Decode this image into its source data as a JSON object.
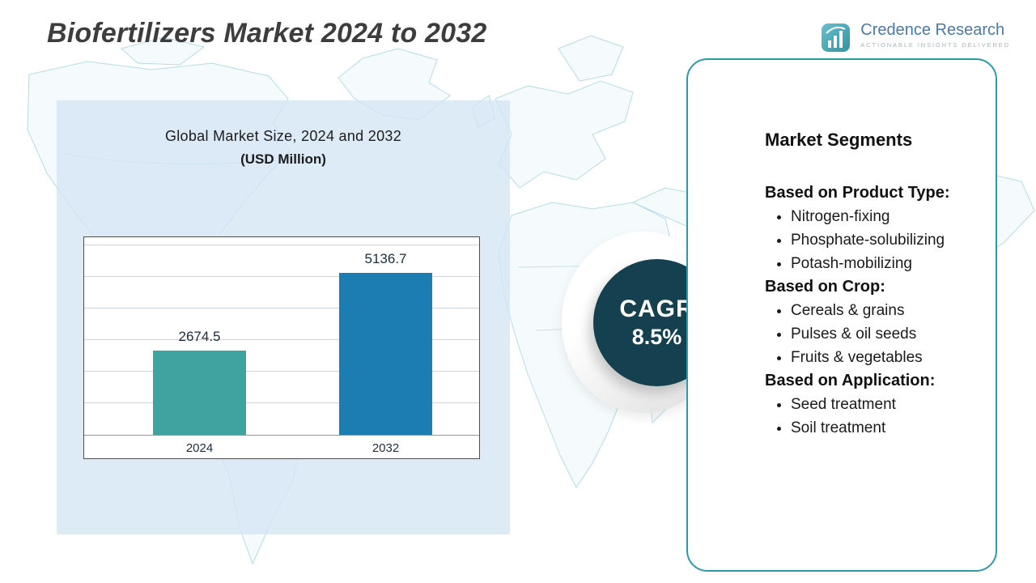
{
  "header": {
    "title": "Biofertilizers Market 2024 to 2032"
  },
  "logo": {
    "name": "Credence Research",
    "tagline": "Actionable Insights Delivered"
  },
  "chart_panel": {
    "title_line1": "Global Market Size, 2024 and 2032",
    "title_line2": "(USD Million)"
  },
  "chart_data": {
    "type": "bar",
    "title": "Global Market Size, 2024 and 2032 (USD Million)",
    "categories": [
      "2024",
      "2032"
    ],
    "values": [
      2674.5,
      5136.7
    ],
    "xlabel": "",
    "ylabel": "",
    "ylim": [
      0,
      6000
    ],
    "grid_step": 1000,
    "grid": true,
    "legend": false,
    "bar_colors": [
      "#3FA49F",
      "#1B7DB2"
    ]
  },
  "cagr": {
    "label": "CAGR",
    "value": "8.5%"
  },
  "segments": {
    "title": "Market Segments",
    "sections": [
      {
        "heading": "Based on Product Type:",
        "items": [
          "Nitrogen-fixing",
          "Phosphate-solubilizing",
          "Potash-mobilizing"
        ]
      },
      {
        "heading": "Based on Crop:",
        "items": [
          "Cereals & grains",
          "Pulses & oil seeds",
          "Fruits & vegetables"
        ]
      },
      {
        "heading": "Based on Application:",
        "items": [
          "Seed treatment",
          "Soil treatment"
        ]
      }
    ]
  },
  "colors": {
    "accent_teal": "#2d9ba6",
    "bar_2024": "#3FA49F",
    "bar_2032": "#1B7DB2",
    "cagr_circle": "#14404f",
    "map_line": "#b7dce6",
    "panel_bg": "#d4e6f3",
    "title_text": "#3d3d3d",
    "logo_blue": "#4a7aad"
  }
}
